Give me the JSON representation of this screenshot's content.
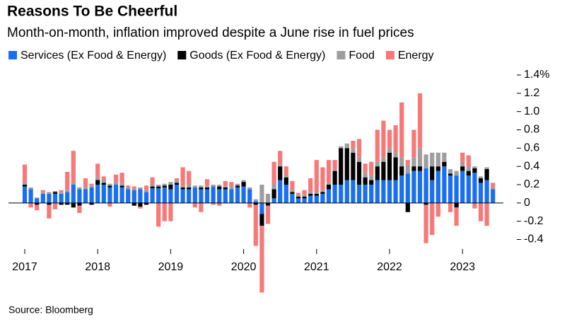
{
  "chart_data": {
    "type": "bar",
    "stacked": true,
    "title": "Reasons To Be Cheerful",
    "subtitle": "Month-on-month, inflation improved despite a June rise in fuel prices",
    "source": "Source: Bloomberg",
    "categories": [
      "2017",
      null,
      null,
      null,
      null,
      null,
      null,
      null,
      null,
      null,
      null,
      null,
      "2018",
      null,
      null,
      null,
      null,
      null,
      null,
      null,
      null,
      null,
      null,
      null,
      "2019",
      null,
      null,
      null,
      null,
      null,
      null,
      null,
      null,
      null,
      null,
      null,
      "2020",
      null,
      null,
      null,
      null,
      null,
      null,
      null,
      null,
      null,
      null,
      null,
      "2021",
      null,
      null,
      null,
      null,
      null,
      null,
      null,
      null,
      null,
      null,
      null,
      "2022",
      null,
      null,
      null,
      null,
      null,
      null,
      null,
      null,
      null,
      null,
      null,
      "2023",
      null,
      null,
      null,
      null,
      null
    ],
    "series": [
      {
        "name": "Services (Ex Food & Energy)",
        "color": "#1a6ff0",
        "values": [
          0.18,
          0.15,
          0.05,
          0.1,
          0.1,
          0.1,
          0.1,
          0.12,
          0.2,
          0.15,
          0.15,
          0.17,
          0.2,
          0.2,
          0.17,
          0.2,
          0.17,
          0.15,
          0.14,
          0.15,
          0.12,
          0.16,
          0.16,
          0.17,
          0.15,
          0.2,
          0.15,
          0.15,
          0.17,
          0.15,
          0.15,
          0.18,
          0.15,
          0.15,
          0.15,
          0.17,
          0.18,
          0.15,
          0.02,
          -0.12,
          0,
          0.05,
          0.25,
          0.2,
          0.1,
          0.05,
          0.05,
          0.08,
          0.08,
          0.1,
          0.15,
          0.2,
          0.2,
          0.25,
          0.25,
          0.2,
          0.2,
          0.2,
          0.25,
          0.25,
          0.25,
          0.25,
          0.3,
          0.32,
          0.35,
          0.35,
          0.38,
          0.25,
          0.35,
          0.4,
          0.3,
          0.3,
          0.35,
          0.3,
          0.33,
          0.22,
          0.25,
          0.15
        ]
      },
      {
        "name": "Goods (Ex Food & Energy)",
        "color": "#000000",
        "values": [
          0.02,
          0,
          -0.02,
          0,
          -0.02,
          0.02,
          -0.02,
          -0.02,
          -0.05,
          -0.03,
          0,
          -0.02,
          0.05,
          0.02,
          0.02,
          0,
          0.02,
          0,
          -0.03,
          -0.04,
          -0.02,
          0.02,
          0.02,
          0.02,
          0.05,
          0.02,
          0.02,
          0.02,
          0,
          0.02,
          0.02,
          0,
          0.03,
          0.02,
          0,
          0.02,
          0.05,
          0,
          -0.02,
          -0.13,
          -0.03,
          0.1,
          0.15,
          0.08,
          0.02,
          0.02,
          0.02,
          0.02,
          0.02,
          0.02,
          0.05,
          0.15,
          0.4,
          0.35,
          0.3,
          0.25,
          0.08,
          0.05,
          0.15,
          0.2,
          0.3,
          0.25,
          0.1,
          -0.1,
          0.05,
          0.05,
          -0.02,
          0.15,
          0.05,
          0.05,
          0.02,
          -0.05,
          0.05,
          0.05,
          0.05,
          0.05,
          0.12,
          0
        ]
      },
      {
        "name": "Food",
        "color": "#9e9e9e",
        "values": [
          0.02,
          0.02,
          0.01,
          0.02,
          0.02,
          0.01,
          0.02,
          0.02,
          0.02,
          0.02,
          0.02,
          0.02,
          0.03,
          0.03,
          0.02,
          0.03,
          0.02,
          0.02,
          0.02,
          0.02,
          0.02,
          0.02,
          0.02,
          0.02,
          0.03,
          0.03,
          0.02,
          0.03,
          0.02,
          0.02,
          0.02,
          0.02,
          0.02,
          0.02,
          0.03,
          0.02,
          0.02,
          0.02,
          0.02,
          0.2,
          0.1,
          0.05,
          0.02,
          0.02,
          0.02,
          0.02,
          0.02,
          0.02,
          0.02,
          0.02,
          0.02,
          0.02,
          0.02,
          0.05,
          0.05,
          0.05,
          0.05,
          0.05,
          0.05,
          0.05,
          0.05,
          0.05,
          0.1,
          0.1,
          0.1,
          0.2,
          0.15,
          0.15,
          0.15,
          0.1,
          0.05,
          0.05,
          0.05,
          0.05,
          0.02,
          0.02,
          0.02,
          0.02
        ]
      },
      {
        "name": "Energy",
        "color": "#f87878",
        "values": [
          0.2,
          -0.05,
          -0.06,
          0.02,
          -0.15,
          -0.07,
          0.02,
          0.2,
          0.35,
          -0.08,
          0.1,
          0.02,
          0.15,
          0.04,
          -0.04,
          0.08,
          0.12,
          0.02,
          0.02,
          -0.02,
          0.05,
          0.08,
          -0.26,
          -0.2,
          -0.2,
          0.02,
          0.2,
          0.15,
          -0.05,
          -0.1,
          0.07,
          -0.02,
          -0.03,
          0.05,
          0.05,
          0,
          0,
          -0.05,
          -0.45,
          -0.73,
          -0.2,
          0.25,
          0.15,
          0.1,
          0.1,
          0.02,
          0.05,
          0.15,
          0.35,
          0.25,
          0.25,
          0.1,
          0,
          0,
          0.08,
          0.2,
          0.1,
          0.15,
          0.35,
          0.4,
          0.2,
          0.3,
          0.6,
          0.05,
          0.3,
          0.6,
          -0.42,
          -0.35,
          -0.15,
          0,
          -0.1,
          -0.2,
          0.1,
          0.12,
          -0.06,
          -0.2,
          -0.25,
          0.05
        ]
      }
    ],
    "ylim": [
      -1.0,
      1.4
    ],
    "yticks": [
      -0.4,
      -0.2,
      0,
      0.2,
      0.4,
      0.6,
      0.8,
      {
        "value": 1.0,
        "label": "1.0"
      },
      1.2,
      {
        "value": 1.4,
        "label": "1.4%"
      }
    ]
  }
}
